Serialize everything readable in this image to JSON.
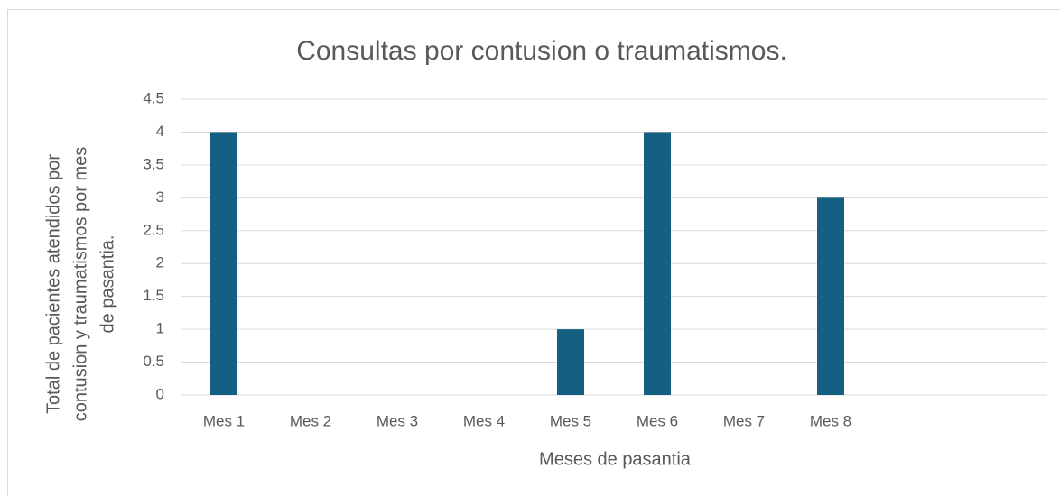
{
  "chart_data": {
    "type": "bar",
    "title": "Consultas por contusion o traumatismos.",
    "xlabel": "Meses de pasantia",
    "ylabel": [
      "Total de pacientes atendidos por",
      "contusion y traumatismos por mes",
      "de pasantia."
    ],
    "categories": [
      "Mes 1",
      "Mes 2",
      "Mes 3",
      "Mes 4",
      "Mes 5",
      "Mes 6",
      "Mes 7",
      "Mes 8",
      null,
      null
    ],
    "values": [
      4,
      0,
      0,
      0,
      1,
      4,
      0,
      3,
      null,
      null
    ],
    "color": "#156082",
    "ylim": [
      0,
      4.5
    ],
    "yticks": [
      0,
      0.5,
      1,
      1.5,
      2,
      2.5,
      3,
      3.5,
      4,
      4.5
    ],
    "grid": true
  }
}
